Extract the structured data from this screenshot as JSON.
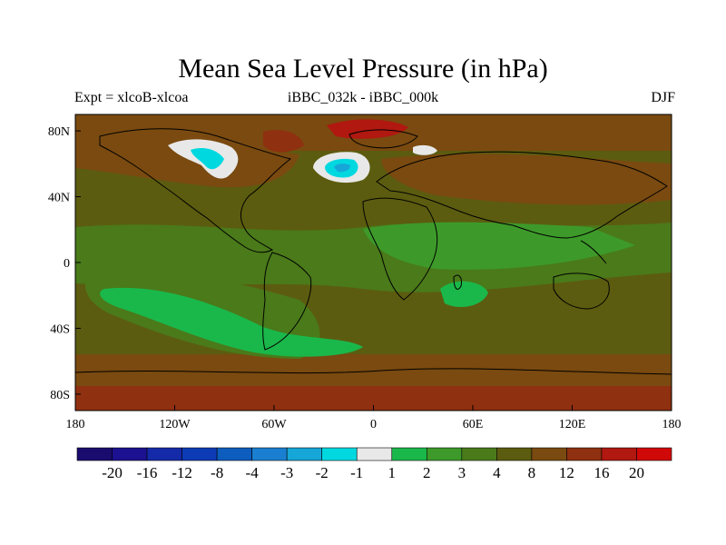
{
  "title": "Mean Sea Level Pressure (in hPa)",
  "subtitle_left": "Expt = xlcoB-xlcoa",
  "subtitle_center": "iBBC_032k - iBBC_000k",
  "subtitle_right": "DJF",
  "x_ticks": [
    {
      "lon": -180,
      "label": "180"
    },
    {
      "lon": -120,
      "label": "120W"
    },
    {
      "lon": -60,
      "label": "60W"
    },
    {
      "lon": 0,
      "label": "0"
    },
    {
      "lon": 60,
      "label": "60E"
    },
    {
      "lon": 120,
      "label": "120E"
    },
    {
      "lon": 180,
      "label": "180"
    }
  ],
  "y_ticks": [
    {
      "lat": 80,
      "label": "80N"
    },
    {
      "lat": 40,
      "label": "40N"
    },
    {
      "lat": 0,
      "label": "0"
    },
    {
      "lat": -40,
      "label": "40S"
    },
    {
      "lat": -80,
      "label": "80S"
    }
  ],
  "colorbar": {
    "colors": [
      "#1a0c6e",
      "#1c1190",
      "#142aa8",
      "#0d3bb5",
      "#0c5dbd",
      "#1a7fd0",
      "#16a6d8",
      "#00d8e0",
      "#e8e8e8",
      "#1ab84b",
      "#3d9a2a",
      "#4a7a1a",
      "#5c5c10",
      "#7a4a10",
      "#8f3010",
      "#b01810",
      "#d00808"
    ],
    "labels": [
      "-20",
      "-16",
      "-12",
      "-8",
      "-4",
      "-3",
      "-2",
      "-1",
      "1",
      "2",
      "3",
      "4",
      "8",
      "12",
      "16",
      "20"
    ]
  },
  "map_colors": {
    "background": "#5c5c10",
    "dark_olive": "#4a7a1a",
    "green": "#3d9a2a",
    "bright_green": "#1ab84b",
    "brown": "#7a4a10",
    "dark_red": "#8f3010",
    "red": "#b01810",
    "white": "#e8e8e8",
    "cyan": "#00d8e0",
    "light_blue": "#16a6d8"
  }
}
